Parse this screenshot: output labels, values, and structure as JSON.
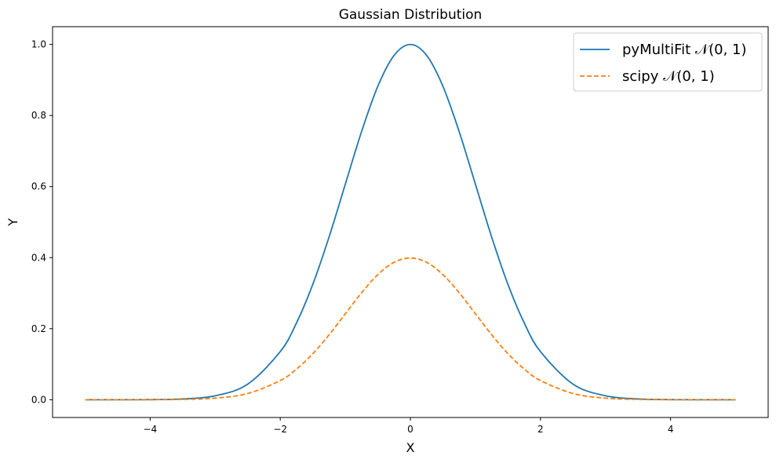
{
  "chart_data": {
    "type": "line",
    "title": "Gaussian Distribution",
    "xlabel": "X",
    "ylabel": "Y",
    "xlim": [
      -5.5,
      5.5
    ],
    "ylim": [
      -0.05,
      1.05
    ],
    "xticks": [
      -4,
      -2,
      0,
      2,
      4
    ],
    "xtick_labels": [
      "−4",
      "−2",
      "0",
      "2",
      "4"
    ],
    "yticks": [
      0.0,
      0.2,
      0.4,
      0.6,
      0.8,
      1.0
    ],
    "ytick_labels": [
      "0.0",
      "0.2",
      "0.4",
      "0.6",
      "0.8",
      "1.0"
    ],
    "grid": false,
    "legend_position": "top-right",
    "x": [
      -5,
      -4.5,
      -4,
      -3.5,
      -3,
      -2.5,
      -2,
      -1.75,
      -1.5,
      -1.25,
      -1,
      -0.75,
      -0.5,
      -0.25,
      0,
      0.25,
      0.5,
      0.75,
      1,
      1.25,
      1.5,
      1.75,
      2,
      2.5,
      3,
      3.5,
      4,
      4.5,
      5
    ],
    "series": [
      {
        "name": "pyMultiFit 𝒩(0, 1)",
        "color": "#1f77b4",
        "style": "solid",
        "values": [
          0.0,
          0.0,
          0.0003,
          0.0022,
          0.0111,
          0.0439,
          0.1353,
          0.2163,
          0.3247,
          0.4578,
          0.6065,
          0.7548,
          0.8825,
          0.9692,
          1.0,
          0.9692,
          0.8825,
          0.7548,
          0.6065,
          0.4578,
          0.3247,
          0.2163,
          0.1353,
          0.0439,
          0.0111,
          0.0022,
          0.0003,
          0.0,
          0.0
        ]
      },
      {
        "name": "scipy 𝒩(0, 1)",
        "color": "#ff7f0e",
        "style": "dashed",
        "values": [
          0.0,
          0.0,
          0.0001,
          0.0009,
          0.0044,
          0.0175,
          0.054,
          0.0863,
          0.1295,
          0.1826,
          0.242,
          0.3011,
          0.3521,
          0.3867,
          0.3989,
          0.3867,
          0.3521,
          0.3011,
          0.242,
          0.1826,
          0.1295,
          0.0863,
          0.054,
          0.0175,
          0.0044,
          0.0009,
          0.0001,
          0.0,
          0.0
        ]
      }
    ]
  }
}
